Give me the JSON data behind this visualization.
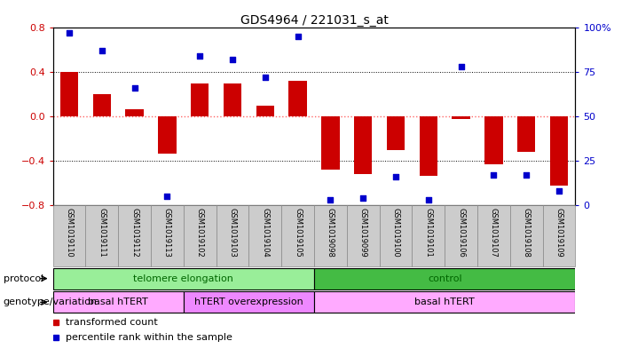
{
  "title": "GDS4964 / 221031_s_at",
  "samples": [
    "GSM1019110",
    "GSM1019111",
    "GSM1019112",
    "GSM1019113",
    "GSM1019102",
    "GSM1019103",
    "GSM1019104",
    "GSM1019105",
    "GSM1019098",
    "GSM1019099",
    "GSM1019100",
    "GSM1019101",
    "GSM1019106",
    "GSM1019107",
    "GSM1019108",
    "GSM1019109"
  ],
  "bar_values": [
    0.4,
    0.2,
    0.07,
    -0.33,
    0.3,
    0.3,
    0.1,
    0.32,
    -0.48,
    -0.52,
    -0.3,
    -0.53,
    -0.02,
    -0.43,
    -0.32,
    -0.62
  ],
  "percentile_values": [
    97,
    87,
    66,
    5,
    84,
    82,
    72,
    95,
    3,
    4,
    16,
    3,
    78,
    17,
    17,
    8
  ],
  "bar_color": "#cc0000",
  "dot_color": "#0000cc",
  "ylim_left": [
    -0.8,
    0.8
  ],
  "ylim_right": [
    0,
    100
  ],
  "yticks_left": [
    -0.8,
    -0.4,
    0.0,
    0.4,
    0.8
  ],
  "yticks_right": [
    0,
    25,
    50,
    75,
    100
  ],
  "ytick_labels_right": [
    "0",
    "25",
    "50",
    "75",
    "100%"
  ],
  "zero_line_color": "#ff6666",
  "grid_color": "black",
  "protocol_groups": [
    {
      "label": "telomere elongation",
      "start": 0,
      "end": 7,
      "color": "#99ee99"
    },
    {
      "label": "control",
      "start": 8,
      "end": 15,
      "color": "#44bb44"
    }
  ],
  "genotype_groups": [
    {
      "label": "basal hTERT",
      "start": 0,
      "end": 3,
      "color": "#ffaaff"
    },
    {
      "label": "hTERT overexpression",
      "start": 4,
      "end": 7,
      "color": "#ee88ff"
    },
    {
      "label": "basal hTERT",
      "start": 8,
      "end": 15,
      "color": "#ffaaff"
    }
  ],
  "legend_items": [
    {
      "label": "transformed count",
      "color": "#cc0000"
    },
    {
      "label": "percentile rank within the sample",
      "color": "#0000cc"
    }
  ],
  "protocol_label": "protocol",
  "genotype_label": "genotype/variation",
  "bg_color": "#ffffff",
  "plot_bg_color": "#ffffff",
  "tick_label_color_left": "#cc0000",
  "tick_label_color_right": "#0000cc",
  "col_bg_color": "#cccccc"
}
